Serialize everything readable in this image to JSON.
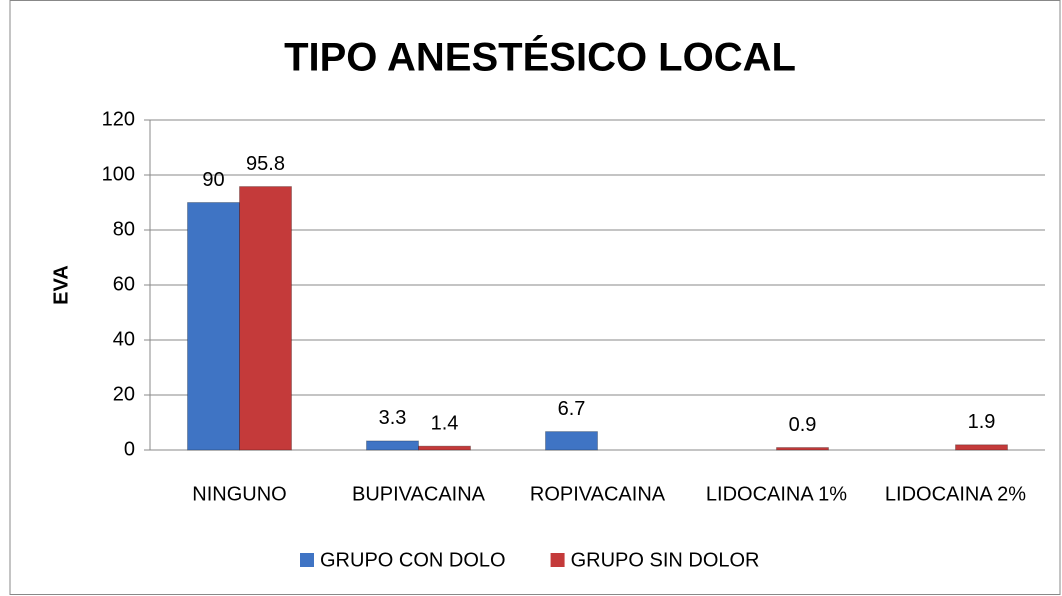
{
  "chart_data": {
    "type": "bar",
    "title": "TIPO ANESTÉSICO LOCAL",
    "ylabel": "EVA",
    "categories": [
      "NINGUNO",
      "BUPIVACAINA",
      "ROPIVACAINA",
      "LIDOCAINA 1%",
      "LIDOCAINA 2%"
    ],
    "series": [
      {
        "name": "GRUPO CON DOLO",
        "color": "#3f74c4",
        "values": [
          90,
          3.3,
          6.7,
          null,
          null
        ]
      },
      {
        "name": "GRUPO SIN DOLOR",
        "color": "#c43a3a",
        "values": [
          95.8,
          1.4,
          null,
          0.9,
          1.9
        ]
      }
    ],
    "ylim": [
      0,
      120
    ],
    "yticks": [
      0,
      20,
      40,
      60,
      80,
      100,
      120
    ],
    "grid": true,
    "legend": "bottom"
  }
}
